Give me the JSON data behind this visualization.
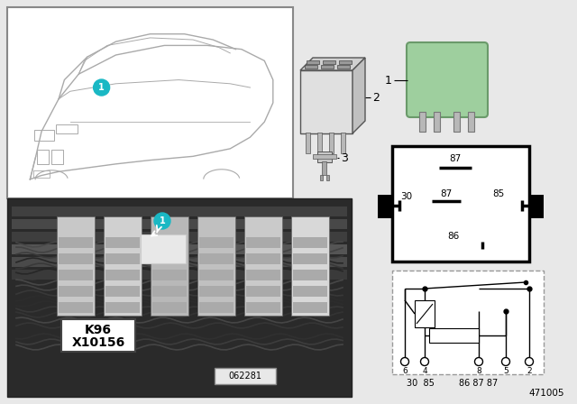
{
  "bg_color": "#e8e8e8",
  "teal_color": "#1ab8c4",
  "car_box_bg": "#ffffff",
  "car_box_border": "#888888",
  "car_line_color": "#aaaaaa",
  "photo_bg": "#2a2a2a",
  "relay_green": "#9ecf9e",
  "relay_green_border": "#6a9a6a",
  "relay_pin_box_bg": "#ffffff",
  "relay_pin_box_border": "#000000",
  "schematic_bg": "#ffffff",
  "schematic_border": "#999999",
  "label_2_line_color": "#333333",
  "part_number": "471005",
  "ref_number": "062281",
  "callout_line1": "K96",
  "callout_line2": "X10156",
  "pin_diagram_labels": {
    "top_87": "87",
    "mid_87": "87",
    "mid_85": "85",
    "left_30": "30",
    "bot_86": "86"
  },
  "schematic_bottom_nums": [
    "6",
    "4",
    "8",
    "5",
    "2"
  ],
  "schematic_bottom_labels": [
    "30",
    "85",
    "86",
    "87",
    "87"
  ]
}
